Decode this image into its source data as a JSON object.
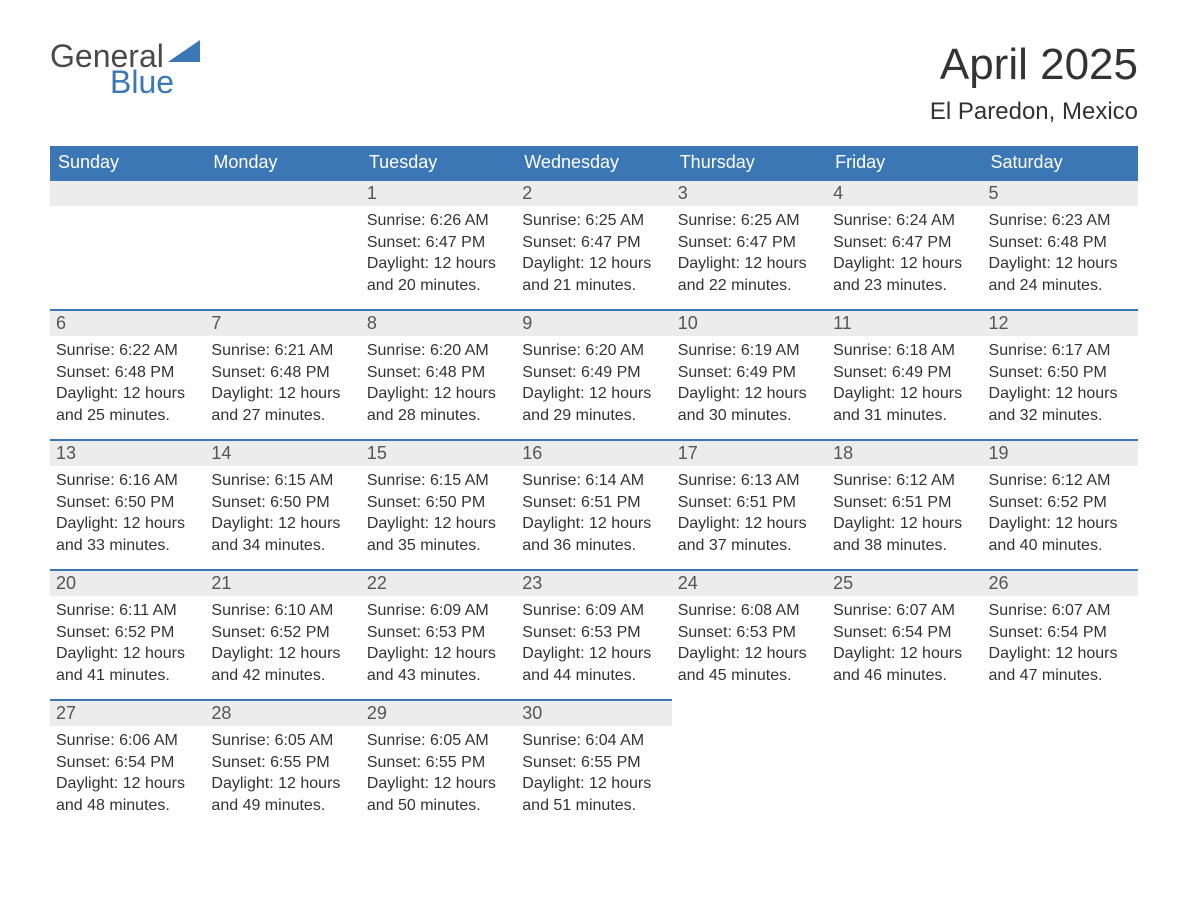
{
  "brand": {
    "general": "General",
    "blue": "Blue",
    "shape_color": "#3b76b5",
    "text_gray": "#4a4a4a"
  },
  "title": "April 2025",
  "location": "El Paredon, Mexico",
  "colors": {
    "header_bg": "#3b76b5",
    "header_text": "#ffffff",
    "daynum_bg": "#ececec",
    "daynum_border": "#3b76b5",
    "body_text": "#333333",
    "page_bg": "#ffffff"
  },
  "fonts": {
    "title_size": 44,
    "location_size": 24,
    "header_size": 18,
    "daynum_size": 18,
    "body_size": 16,
    "logo_size": 32
  },
  "labels": {
    "sunrise": "Sunrise:",
    "sunset": "Sunset:",
    "daylight": "Daylight:"
  },
  "day_headers": [
    "Sunday",
    "Monday",
    "Tuesday",
    "Wednesday",
    "Thursday",
    "Friday",
    "Saturday"
  ],
  "weeks": [
    [
      {
        "blank": true
      },
      {
        "blank": true
      },
      {
        "day": "1",
        "sunrise": "6:26 AM",
        "sunset": "6:47 PM",
        "daylight": "12 hours and 20 minutes."
      },
      {
        "day": "2",
        "sunrise": "6:25 AM",
        "sunset": "6:47 PM",
        "daylight": "12 hours and 21 minutes."
      },
      {
        "day": "3",
        "sunrise": "6:25 AM",
        "sunset": "6:47 PM",
        "daylight": "12 hours and 22 minutes."
      },
      {
        "day": "4",
        "sunrise": "6:24 AM",
        "sunset": "6:47 PM",
        "daylight": "12 hours and 23 minutes."
      },
      {
        "day": "5",
        "sunrise": "6:23 AM",
        "sunset": "6:48 PM",
        "daylight": "12 hours and 24 minutes."
      }
    ],
    [
      {
        "day": "6",
        "sunrise": "6:22 AM",
        "sunset": "6:48 PM",
        "daylight": "12 hours and 25 minutes."
      },
      {
        "day": "7",
        "sunrise": "6:21 AM",
        "sunset": "6:48 PM",
        "daylight": "12 hours and 27 minutes."
      },
      {
        "day": "8",
        "sunrise": "6:20 AM",
        "sunset": "6:48 PM",
        "daylight": "12 hours and 28 minutes."
      },
      {
        "day": "9",
        "sunrise": "6:20 AM",
        "sunset": "6:49 PM",
        "daylight": "12 hours and 29 minutes."
      },
      {
        "day": "10",
        "sunrise": "6:19 AM",
        "sunset": "6:49 PM",
        "daylight": "12 hours and 30 minutes."
      },
      {
        "day": "11",
        "sunrise": "6:18 AM",
        "sunset": "6:49 PM",
        "daylight": "12 hours and 31 minutes."
      },
      {
        "day": "12",
        "sunrise": "6:17 AM",
        "sunset": "6:50 PM",
        "daylight": "12 hours and 32 minutes."
      }
    ],
    [
      {
        "day": "13",
        "sunrise": "6:16 AM",
        "sunset": "6:50 PM",
        "daylight": "12 hours and 33 minutes."
      },
      {
        "day": "14",
        "sunrise": "6:15 AM",
        "sunset": "6:50 PM",
        "daylight": "12 hours and 34 minutes."
      },
      {
        "day": "15",
        "sunrise": "6:15 AM",
        "sunset": "6:50 PM",
        "daylight": "12 hours and 35 minutes."
      },
      {
        "day": "16",
        "sunrise": "6:14 AM",
        "sunset": "6:51 PM",
        "daylight": "12 hours and 36 minutes."
      },
      {
        "day": "17",
        "sunrise": "6:13 AM",
        "sunset": "6:51 PM",
        "daylight": "12 hours and 37 minutes."
      },
      {
        "day": "18",
        "sunrise": "6:12 AM",
        "sunset": "6:51 PM",
        "daylight": "12 hours and 38 minutes."
      },
      {
        "day": "19",
        "sunrise": "6:12 AM",
        "sunset": "6:52 PM",
        "daylight": "12 hours and 40 minutes."
      }
    ],
    [
      {
        "day": "20",
        "sunrise": "6:11 AM",
        "sunset": "6:52 PM",
        "daylight": "12 hours and 41 minutes."
      },
      {
        "day": "21",
        "sunrise": "6:10 AM",
        "sunset": "6:52 PM",
        "daylight": "12 hours and 42 minutes."
      },
      {
        "day": "22",
        "sunrise": "6:09 AM",
        "sunset": "6:53 PM",
        "daylight": "12 hours and 43 minutes."
      },
      {
        "day": "23",
        "sunrise": "6:09 AM",
        "sunset": "6:53 PM",
        "daylight": "12 hours and 44 minutes."
      },
      {
        "day": "24",
        "sunrise": "6:08 AM",
        "sunset": "6:53 PM",
        "daylight": "12 hours and 45 minutes."
      },
      {
        "day": "25",
        "sunrise": "6:07 AM",
        "sunset": "6:54 PM",
        "daylight": "12 hours and 46 minutes."
      },
      {
        "day": "26",
        "sunrise": "6:07 AM",
        "sunset": "6:54 PM",
        "daylight": "12 hours and 47 minutes."
      }
    ],
    [
      {
        "day": "27",
        "sunrise": "6:06 AM",
        "sunset": "6:54 PM",
        "daylight": "12 hours and 48 minutes."
      },
      {
        "day": "28",
        "sunrise": "6:05 AM",
        "sunset": "6:55 PM",
        "daylight": "12 hours and 49 minutes."
      },
      {
        "day": "29",
        "sunrise": "6:05 AM",
        "sunset": "6:55 PM",
        "daylight": "12 hours and 50 minutes."
      },
      {
        "day": "30",
        "sunrise": "6:04 AM",
        "sunset": "6:55 PM",
        "daylight": "12 hours and 51 minutes."
      },
      {
        "blank": true
      },
      {
        "blank": true
      },
      {
        "blank": true
      }
    ]
  ]
}
